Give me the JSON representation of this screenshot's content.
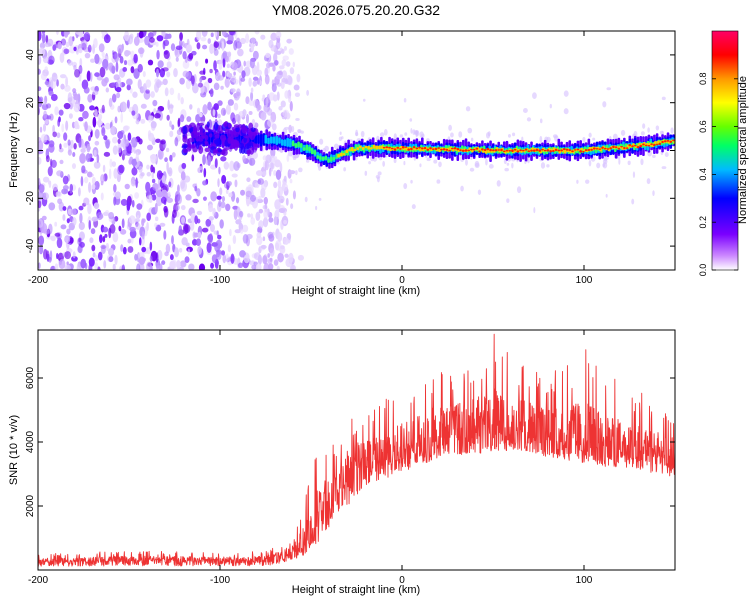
{
  "title": "YM08.2026.075.20.20.G32",
  "chart_data": [
    {
      "type": "heatmap",
      "name": "spectrogram",
      "xlabel": "Height of straight line (km)",
      "ylabel": "Frequency (Hz)",
      "xlim": [
        -200,
        150
      ],
      "ylim": [
        -50,
        50
      ],
      "xticks": [
        -200,
        -100,
        0,
        100
      ],
      "yticks": [
        -40,
        -20,
        0,
        20,
        40
      ],
      "ridge": {
        "description_points_km_hz": [
          [
            -110,
            5
          ],
          [
            -90,
            5
          ],
          [
            -70,
            4
          ],
          [
            -60,
            3
          ],
          [
            -50,
            0
          ],
          [
            -45,
            -3
          ],
          [
            -40,
            -4
          ],
          [
            -35,
            -2
          ],
          [
            -25,
            1
          ],
          [
            0,
            1
          ],
          [
            50,
            0
          ],
          [
            100,
            0
          ],
          [
            130,
            2
          ],
          [
            150,
            4
          ]
        ]
      },
      "noise_region_end_km": -65,
      "colorbar": {
        "label": "Normalized spectral amplitude",
        "range": [
          0,
          1
        ],
        "ticks": [
          0.0,
          0.2,
          0.4,
          0.6,
          0.8
        ],
        "tick_labels": [
          "0.0",
          "0.2",
          "0.4",
          "0.6",
          "0.8"
        ]
      }
    },
    {
      "type": "line",
      "name": "snr",
      "xlabel": "Height of straight line (km)",
      "ylabel": "SNR (10 * v/v)",
      "xlim": [
        -200,
        150
      ],
      "ylim": [
        0,
        7500
      ],
      "xticks": [
        -200,
        -100,
        0,
        100
      ],
      "yticks": [
        2000,
        4000,
        6000
      ],
      "color": "#ee3333",
      "envelope": {
        "x": [
          -200,
          -150,
          -100,
          -75,
          -65,
          -55,
          -45,
          -40,
          -35,
          -30,
          -25,
          -20,
          -15,
          -10,
          0,
          10,
          20,
          30,
          40,
          50,
          60,
          70,
          80,
          90,
          100,
          110,
          120,
          130,
          140,
          150
        ],
        "low": [
          50,
          50,
          50,
          50,
          150,
          300,
          700,
          1000,
          1500,
          1500,
          2000,
          2300,
          2400,
          2600,
          2800,
          3000,
          3200,
          3300,
          3300,
          3400,
          3500,
          3400,
          3300,
          3200,
          3100,
          3000,
          3000,
          2900,
          2800,
          2700
        ],
        "mid": [
          250,
          300,
          300,
          300,
          400,
          700,
          1500,
          2000,
          2600,
          2800,
          3000,
          3200,
          3300,
          3400,
          3600,
          3800,
          4200,
          4300,
          4400,
          4300,
          4300,
          4200,
          4100,
          4000,
          3900,
          3800,
          3700,
          3600,
          3500,
          3400
        ],
        "high": [
          500,
          600,
          550,
          600,
          900,
          1800,
          4500,
          3800,
          4200,
          5500,
          6200,
          5000,
          5200,
          5500,
          5800,
          6100,
          6500,
          6300,
          6700,
          7500,
          6800,
          6600,
          6200,
          6400,
          7000,
          6200,
          6000,
          5600,
          5300,
          5200
        ]
      }
    }
  ]
}
